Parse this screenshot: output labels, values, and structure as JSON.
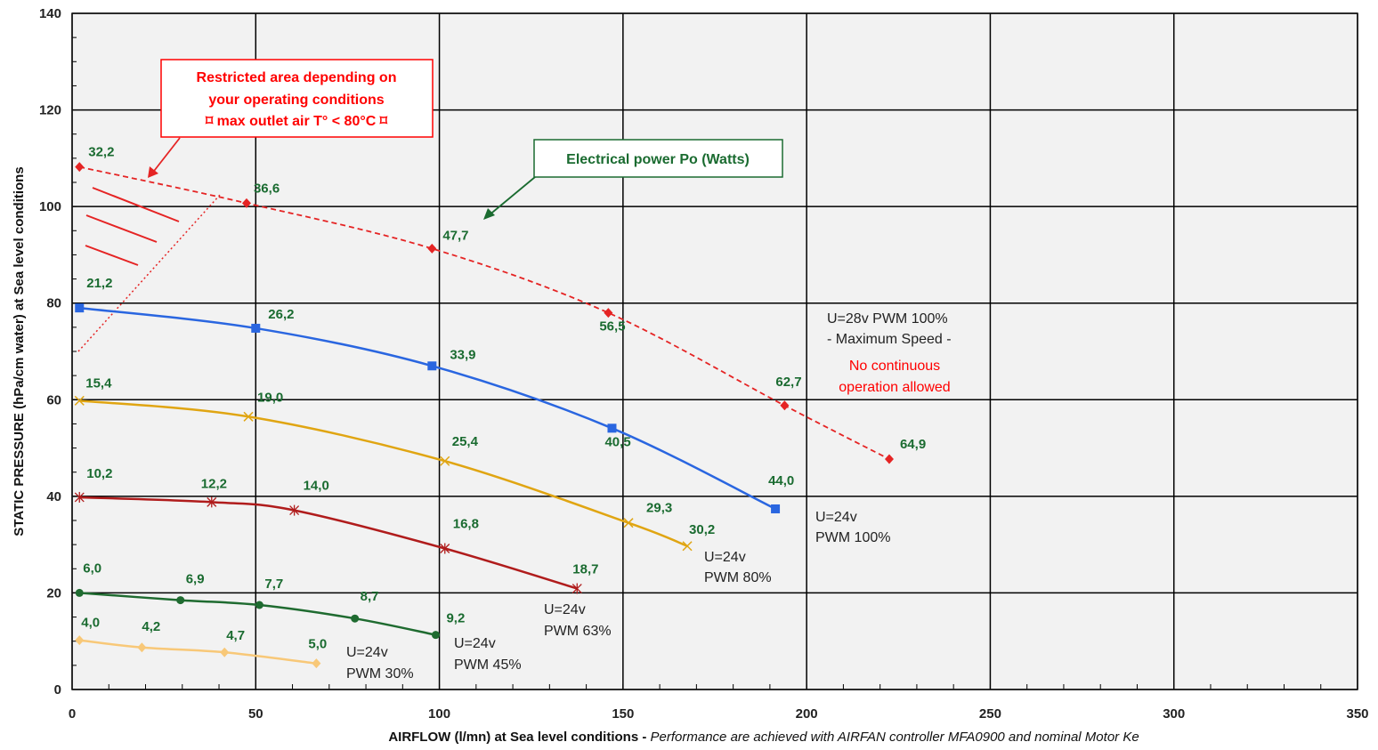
{
  "chart_data": {
    "type": "line",
    "xlabel": "AIRFLOW (l/mn) at Sea level conditions",
    "xlabel_separator": " - ",
    "xlabel_note": "Performance are achieved with AIRFAN controller MFA0900 and nominal Motor Ke",
    "ylabel": "STATIC PRESSURE (hPa/cm water) at Sea level conditions",
    "xlim": [
      0,
      350
    ],
    "ylim": [
      0,
      140
    ],
    "xticks": [
      "0",
      "50",
      "100",
      "150",
      "200",
      "250",
      "300",
      "350"
    ],
    "yticks": [
      "0",
      "20",
      "40",
      "60",
      "80",
      "100",
      "120",
      "140"
    ],
    "grid": true,
    "colors": {
      "label_green": "#1a6b30",
      "restricted_red": "#ff0000",
      "plot_background": "#f2f2f2"
    },
    "series": [
      {
        "id": "s28",
        "name_lines": [
          "U=28v  PWM 100%",
          "- Maximum Speed -"
        ],
        "warning_lines": [
          "No continuous",
          "operation allowed"
        ],
        "color": "#e52424",
        "dashed": true,
        "marker": "diamond",
        "x": [
          2,
          47.5,
          98,
          146,
          194,
          222.5
        ],
        "y": [
          108.2,
          100.7,
          91.3,
          78,
          58.8,
          47.7
        ],
        "power_labels": [
          "32,2",
          "36,6",
          "47,7",
          "56,5",
          "62,7",
          "64,9"
        ]
      },
      {
        "id": "s24_100",
        "name_lines": [
          "U=24v",
          "PWM 100%"
        ],
        "color": "#2a66e0",
        "dashed": false,
        "marker": "square",
        "x": [
          2,
          50,
          98,
          147,
          191.5
        ],
        "y": [
          79,
          74.8,
          67,
          54.1,
          37.4
        ],
        "power_labels": [
          "21,2",
          "26,2",
          "33,9",
          "40,5",
          "44,0"
        ]
      },
      {
        "id": "s24_80",
        "name_lines": [
          "U=24v",
          "PWM 80%"
        ],
        "color": "#e0a512",
        "dashed": false,
        "marker": "x",
        "x": [
          2,
          48,
          101.5,
          151.5,
          167.5
        ],
        "y": [
          59.8,
          56.5,
          47.3,
          34.5,
          29.7
        ],
        "power_labels": [
          "15,4",
          "19,0",
          "25,4",
          "29,3",
          "30,2"
        ]
      },
      {
        "id": "s24_63",
        "name_lines": [
          "U=24v",
          "PWM 63%"
        ],
        "color": "#b01c1c",
        "dashed": false,
        "marker": "star",
        "x": [
          2,
          38,
          60.5,
          101.5,
          137.5
        ],
        "y": [
          39.8,
          38.8,
          37.1,
          29.2,
          20.9
        ],
        "power_labels": [
          "10,2",
          "12,2",
          "14,0",
          "16,8",
          "18,7"
        ]
      },
      {
        "id": "s24_45",
        "name_lines": [
          "U=24v",
          "PWM 45%"
        ],
        "color": "#1f6b30",
        "dashed": false,
        "marker": "circle",
        "x": [
          2,
          29.5,
          51,
          77,
          99
        ],
        "y": [
          20,
          18.5,
          17.5,
          14.7,
          11.3
        ],
        "power_labels": [
          "6,0",
          "6,9",
          "7,7",
          "8,7",
          "9,2"
        ]
      },
      {
        "id": "s24_30",
        "name_lines": [
          "U=24v",
          "PWM 30%"
        ],
        "color": "#f8c878",
        "dashed": false,
        "marker": "diamond",
        "x": [
          2,
          19,
          41.5,
          66.5
        ],
        "y": [
          10.2,
          8.7,
          7.7,
          5.4
        ],
        "power_labels": [
          "4,0",
          "4,2",
          "4,7",
          "5,0"
        ]
      }
    ],
    "annotations": {
      "restricted_lines": [
        "Restricted area depending on",
        "your operating conditions",
        "⌑ max outlet air T° < 80°C ⌑"
      ],
      "power_box": "Electrical power Po (Watts)"
    }
  }
}
